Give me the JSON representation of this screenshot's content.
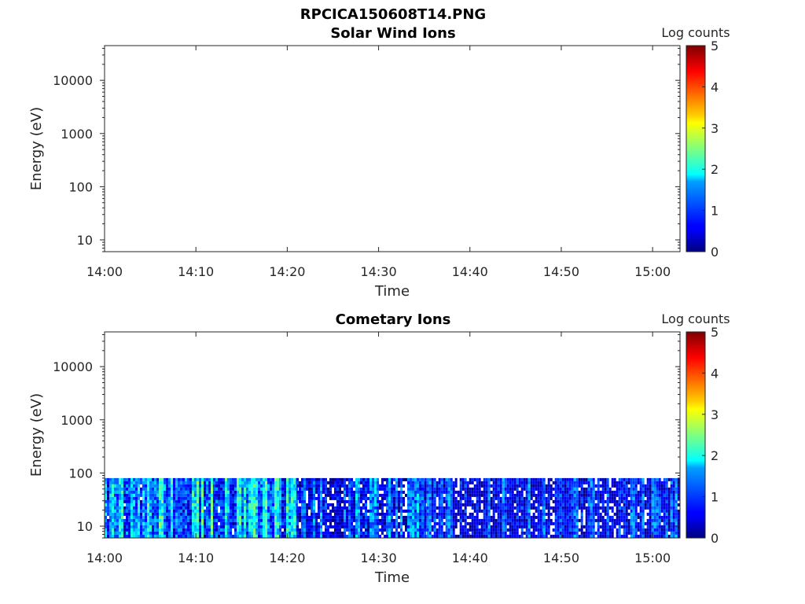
{
  "figure_title": "RPCICA150608T14.PNG",
  "chart_data": [
    {
      "type": "heatmap",
      "title": "Solar Wind Ions",
      "xlabel": "Time",
      "ylabel": "Energy (eV)",
      "yscale": "log",
      "x_ticks": [
        "14:00",
        "14:10",
        "14:20",
        "14:30",
        "14:40",
        "14:50",
        "15:00"
      ],
      "y_ticks": [
        "10",
        "100",
        "1000",
        "10000"
      ],
      "xlim": [
        "14:00",
        "15:03"
      ],
      "ylim": [
        6,
        45000
      ],
      "colorbar": {
        "label": "Log counts",
        "min": 0,
        "max": 5,
        "ticks": [
          "0",
          "1",
          "2",
          "3",
          "4",
          "5"
        ],
        "colormap": "jet"
      },
      "data": "empty"
    },
    {
      "type": "heatmap",
      "title": "Cometary Ions",
      "xlabel": "Time",
      "ylabel": "Energy (eV)",
      "yscale": "log",
      "x_ticks": [
        "14:00",
        "14:10",
        "14:20",
        "14:30",
        "14:40",
        "14:50",
        "15:00"
      ],
      "y_ticks": [
        "10",
        "100",
        "1000",
        "10000"
      ],
      "xlim": [
        "14:00",
        "15:03"
      ],
      "ylim": [
        6,
        45000
      ],
      "colorbar": {
        "label": "Log counts",
        "min": 0,
        "max": 5,
        "ticks": [
          "0",
          "1",
          "2",
          "3",
          "4",
          "5"
        ],
        "colormap": "jet"
      },
      "data": {
        "energy_range_eV": [
          6,
          80
        ],
        "segments": [
          {
            "start": "14:00",
            "end": "14:21",
            "log_counts_range": [
              0.5,
              2.5
            ]
          },
          {
            "start": "14:21",
            "end": "14:35",
            "log_counts_range": [
              0,
              1.8
            ]
          },
          {
            "start": "14:35",
            "end": "14:48",
            "log_counts_range": [
              0,
              1.5
            ]
          },
          {
            "start": "14:48",
            "end": "15:03",
            "log_counts_range": [
              0,
              1.6
            ]
          }
        ]
      }
    }
  ]
}
